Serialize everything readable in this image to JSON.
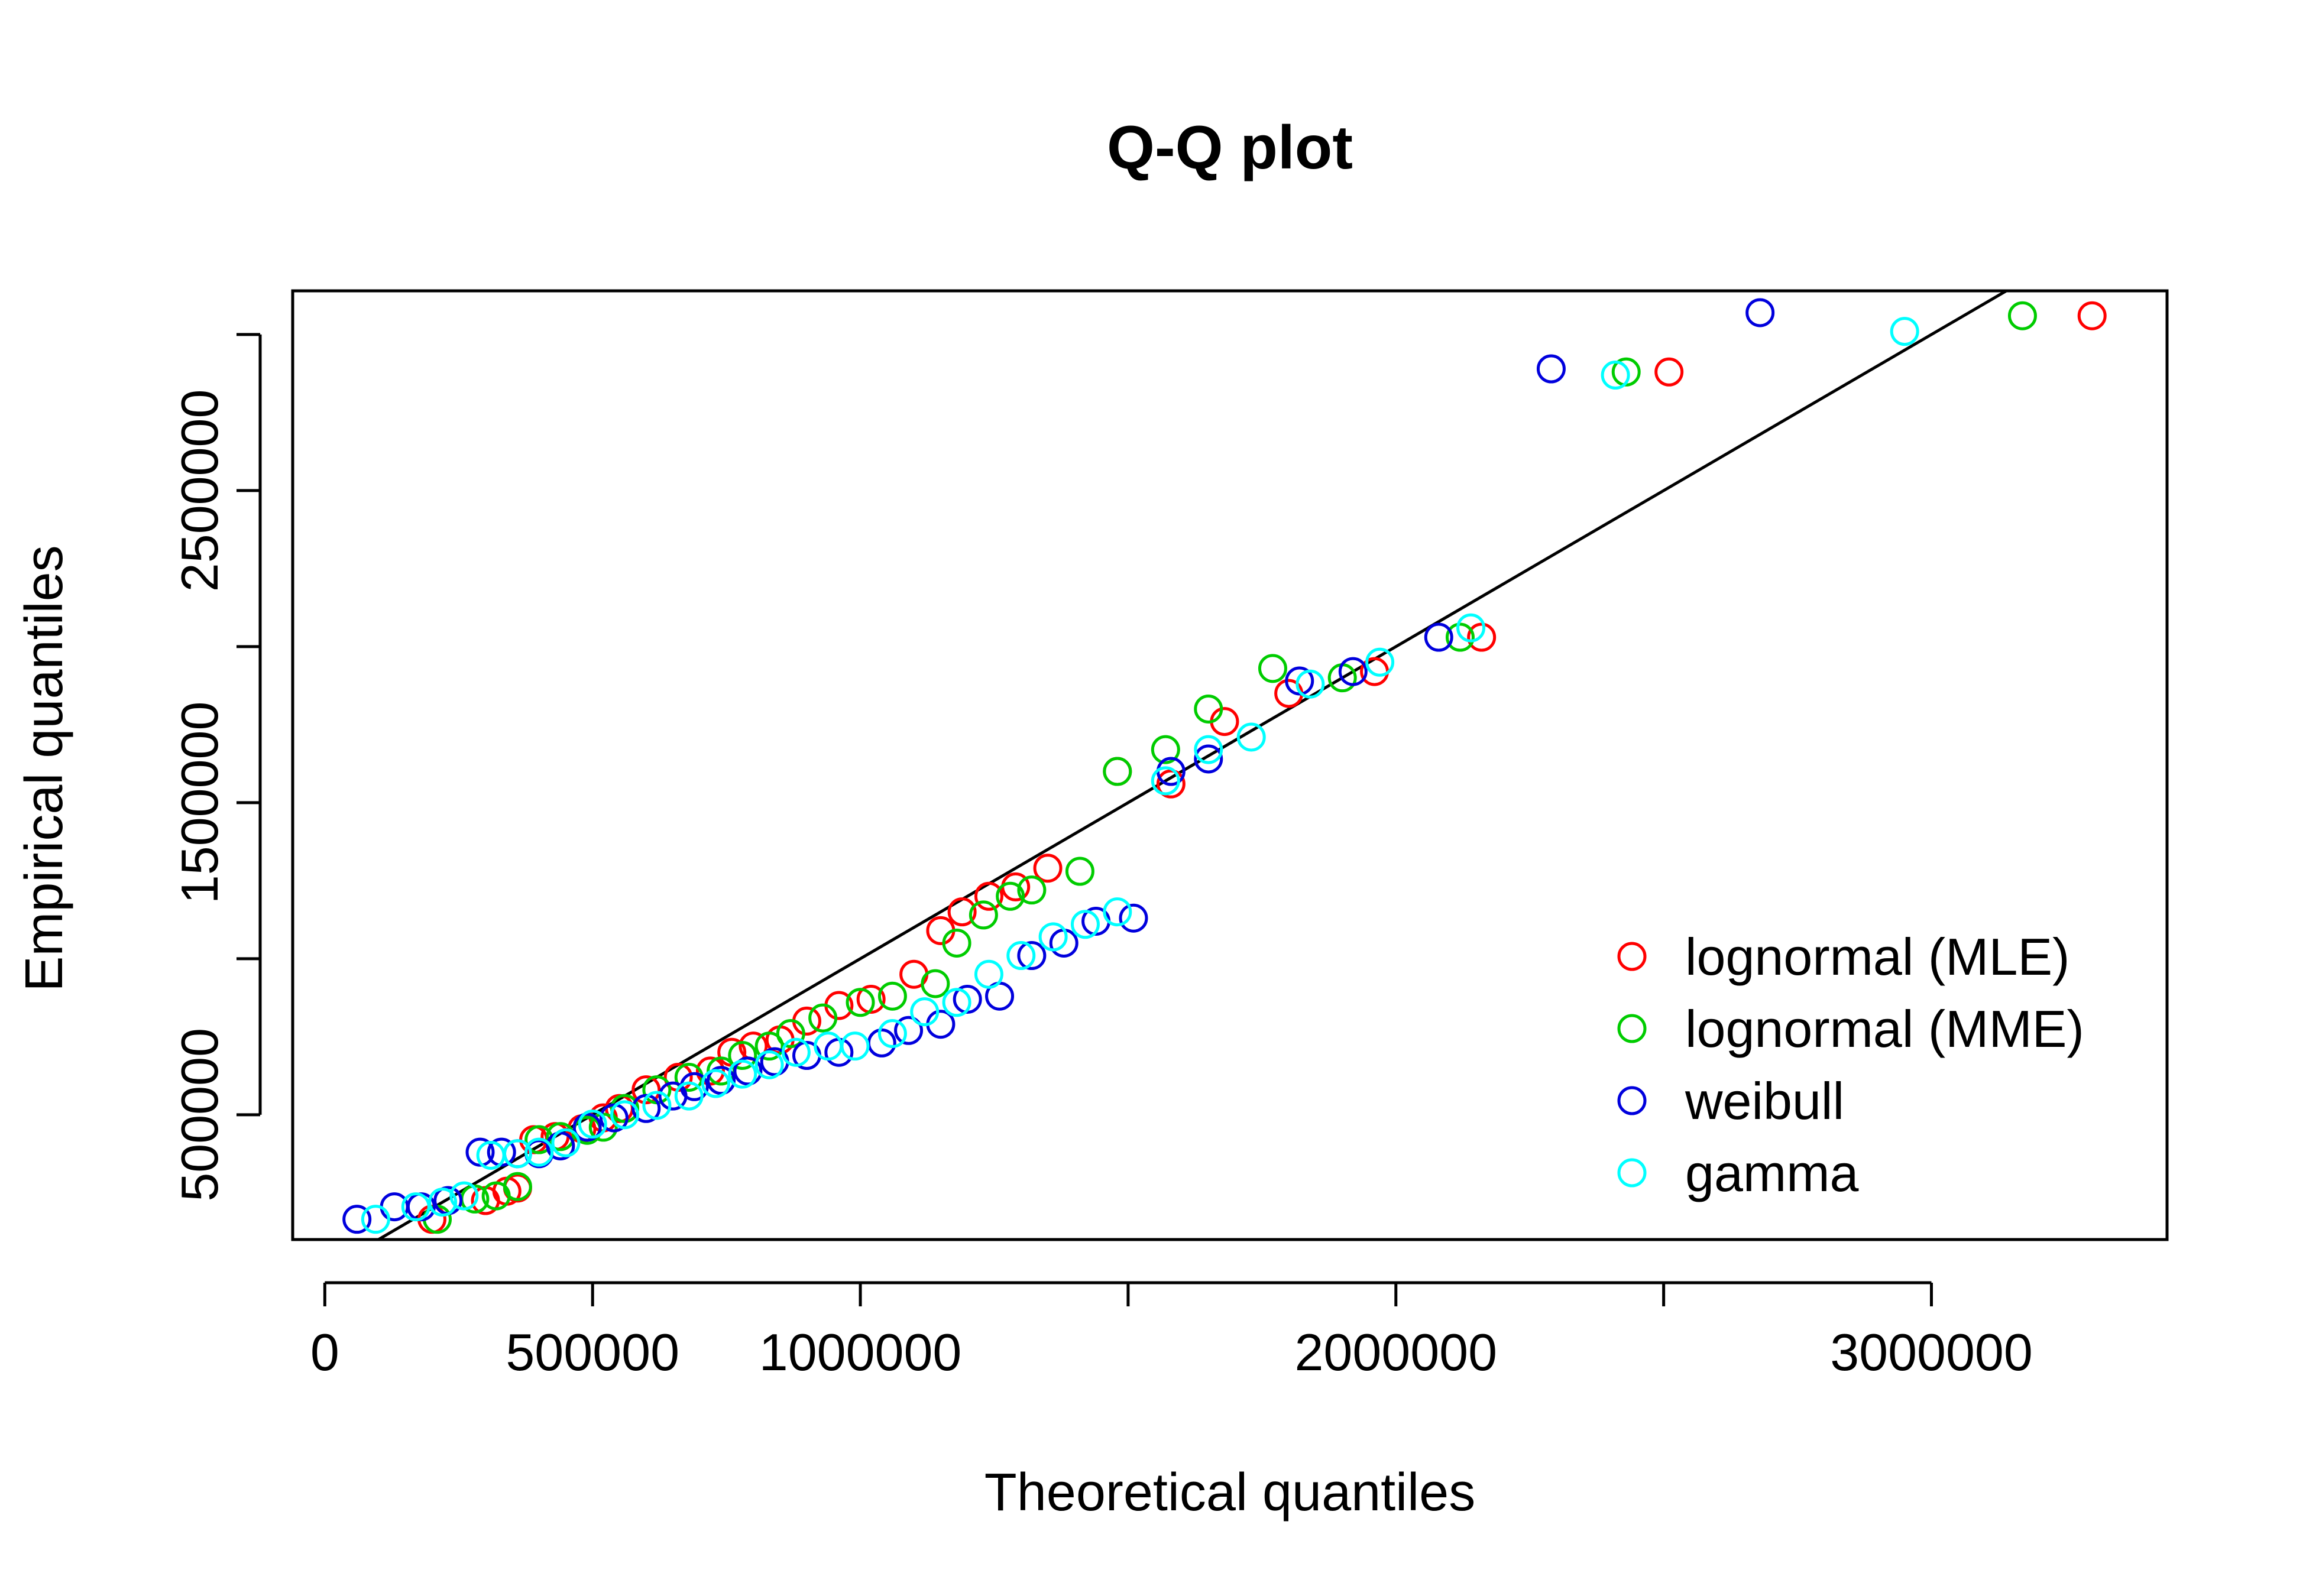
{
  "chart_data": {
    "type": "scatter",
    "title": "Q-Q plot",
    "xlabel": "Theoretical quantiles",
    "ylabel": "Empirical quantiles",
    "xlim": [
      -60000,
      3440000
    ],
    "ylim": [
      100000,
      3140000
    ],
    "x_ticks": [
      0,
      500000,
      1000000,
      1500000,
      2000000,
      2500000,
      3000000
    ],
    "x_tick_labels": [
      "0",
      "500000",
      "1000000",
      "",
      "2000000",
      "",
      "3000000"
    ],
    "y_ticks": [
      500000,
      1000000,
      1500000,
      2000000,
      2500000,
      3000000
    ],
    "y_tick_labels": [
      "500000",
      "",
      "1500000",
      "",
      "2500000",
      ""
    ],
    "reference_line": {
      "intercept": 0,
      "slope": 1
    },
    "grid": false,
    "legend_position": "bottom-right",
    "series": [
      {
        "name": "lognormal (MLE)",
        "color": "#FF0000",
        "points": [
          [
            200000,
            165000
          ],
          [
            300000,
            225000
          ],
          [
            340000,
            255000
          ],
          [
            360000,
            265000
          ],
          [
            390000,
            420000
          ],
          [
            430000,
            430000
          ],
          [
            480000,
            455000
          ],
          [
            520000,
            490000
          ],
          [
            550000,
            520000
          ],
          [
            600000,
            580000
          ],
          [
            660000,
            620000
          ],
          [
            720000,
            640000
          ],
          [
            760000,
            700000
          ],
          [
            800000,
            720000
          ],
          [
            850000,
            740000
          ],
          [
            900000,
            800000
          ],
          [
            960000,
            850000
          ],
          [
            1020000,
            870000
          ],
          [
            1100000,
            950000
          ],
          [
            1150000,
            1090000
          ],
          [
            1190000,
            1150000
          ],
          [
            1240000,
            1200000
          ],
          [
            1290000,
            1230000
          ],
          [
            1350000,
            1290000
          ],
          [
            1480000,
            1600000
          ],
          [
            1580000,
            1560000
          ],
          [
            1680000,
            1760000
          ],
          [
            1800000,
            1850000
          ],
          [
            1960000,
            1920000
          ],
          [
            2160000,
            2030000
          ],
          [
            2510000,
            2880000
          ],
          [
            3300000,
            3060000
          ]
        ]
      },
      {
        "name": "lognormal (MME)",
        "color": "#00CC00",
        "points": [
          [
            210000,
            165000
          ],
          [
            280000,
            230000
          ],
          [
            320000,
            240000
          ],
          [
            360000,
            270000
          ],
          [
            400000,
            420000
          ],
          [
            440000,
            430000
          ],
          [
            490000,
            450000
          ],
          [
            520000,
            460000
          ],
          [
            560000,
            520000
          ],
          [
            620000,
            580000
          ],
          [
            680000,
            620000
          ],
          [
            740000,
            640000
          ],
          [
            780000,
            690000
          ],
          [
            830000,
            720000
          ],
          [
            870000,
            760000
          ],
          [
            930000,
            810000
          ],
          [
            1000000,
            860000
          ],
          [
            1060000,
            880000
          ],
          [
            1140000,
            920000
          ],
          [
            1180000,
            1050000
          ],
          [
            1230000,
            1140000
          ],
          [
            1280000,
            1200000
          ],
          [
            1320000,
            1220000
          ],
          [
            1410000,
            1280000
          ],
          [
            1480000,
            1600000
          ],
          [
            1570000,
            1670000
          ],
          [
            1650000,
            1800000
          ],
          [
            1770000,
            1930000
          ],
          [
            1900000,
            1900000
          ],
          [
            2120000,
            2030000
          ],
          [
            2430000,
            2880000
          ],
          [
            3170000,
            3060000
          ]
        ]
      },
      {
        "name": "weibull",
        "color": "#0000DD",
        "points": [
          [
            60000,
            165000
          ],
          [
            130000,
            205000
          ],
          [
            180000,
            205000
          ],
          [
            230000,
            225000
          ],
          [
            290000,
            380000
          ],
          [
            330000,
            380000
          ],
          [
            360000,
            375000
          ],
          [
            400000,
            375000
          ],
          [
            440000,
            400000
          ],
          [
            490000,
            460000
          ],
          [
            540000,
            490000
          ],
          [
            600000,
            520000
          ],
          [
            650000,
            560000
          ],
          [
            690000,
            590000
          ],
          [
            740000,
            610000
          ],
          [
            790000,
            640000
          ],
          [
            840000,
            670000
          ],
          [
            900000,
            690000
          ],
          [
            960000,
            700000
          ],
          [
            1040000,
            730000
          ],
          [
            1090000,
            770000
          ],
          [
            1150000,
            790000
          ],
          [
            1200000,
            870000
          ],
          [
            1260000,
            880000
          ],
          [
            1320000,
            1010000
          ],
          [
            1380000,
            1050000
          ],
          [
            1440000,
            1120000
          ],
          [
            1510000,
            1130000
          ],
          [
            1580000,
            1600000
          ],
          [
            1650000,
            1640000
          ],
          [
            1820000,
            1890000
          ],
          [
            1920000,
            1920000
          ],
          [
            2080000,
            2030000
          ],
          [
            2290000,
            2890000
          ],
          [
            2680000,
            3070000
          ]
        ]
      },
      {
        "name": "gamma",
        "color": "#00FFFF",
        "points": [
          [
            95000,
            165000
          ],
          [
            170000,
            205000
          ],
          [
            220000,
            220000
          ],
          [
            260000,
            240000
          ],
          [
            310000,
            370000
          ],
          [
            360000,
            375000
          ],
          [
            400000,
            380000
          ],
          [
            450000,
            410000
          ],
          [
            500000,
            470000
          ],
          [
            560000,
            500000
          ],
          [
            620000,
            530000
          ],
          [
            680000,
            560000
          ],
          [
            730000,
            600000
          ],
          [
            780000,
            630000
          ],
          [
            830000,
            660000
          ],
          [
            880000,
            700000
          ],
          [
            940000,
            720000
          ],
          [
            990000,
            720000
          ],
          [
            1060000,
            760000
          ],
          [
            1120000,
            830000
          ],
          [
            1180000,
            860000
          ],
          [
            1240000,
            950000
          ],
          [
            1300000,
            1010000
          ],
          [
            1360000,
            1070000
          ],
          [
            1420000,
            1110000
          ],
          [
            1480000,
            1150000
          ],
          [
            1570000,
            1570000
          ],
          [
            1650000,
            1670000
          ],
          [
            1730000,
            1710000
          ],
          [
            1840000,
            1880000
          ],
          [
            1970000,
            1950000
          ],
          [
            2140000,
            2060000
          ],
          [
            2410000,
            2870000
          ],
          [
            2950000,
            3010000
          ]
        ]
      }
    ]
  },
  "legend": {
    "items": [
      {
        "label": "lognormal (MLE)",
        "color": "#FF0000"
      },
      {
        "label": "lognormal (MME)",
        "color": "#00CC00"
      },
      {
        "label": "weibull",
        "color": "#0000DD"
      },
      {
        "label": "gamma",
        "color": "#00FFFF"
      }
    ]
  }
}
